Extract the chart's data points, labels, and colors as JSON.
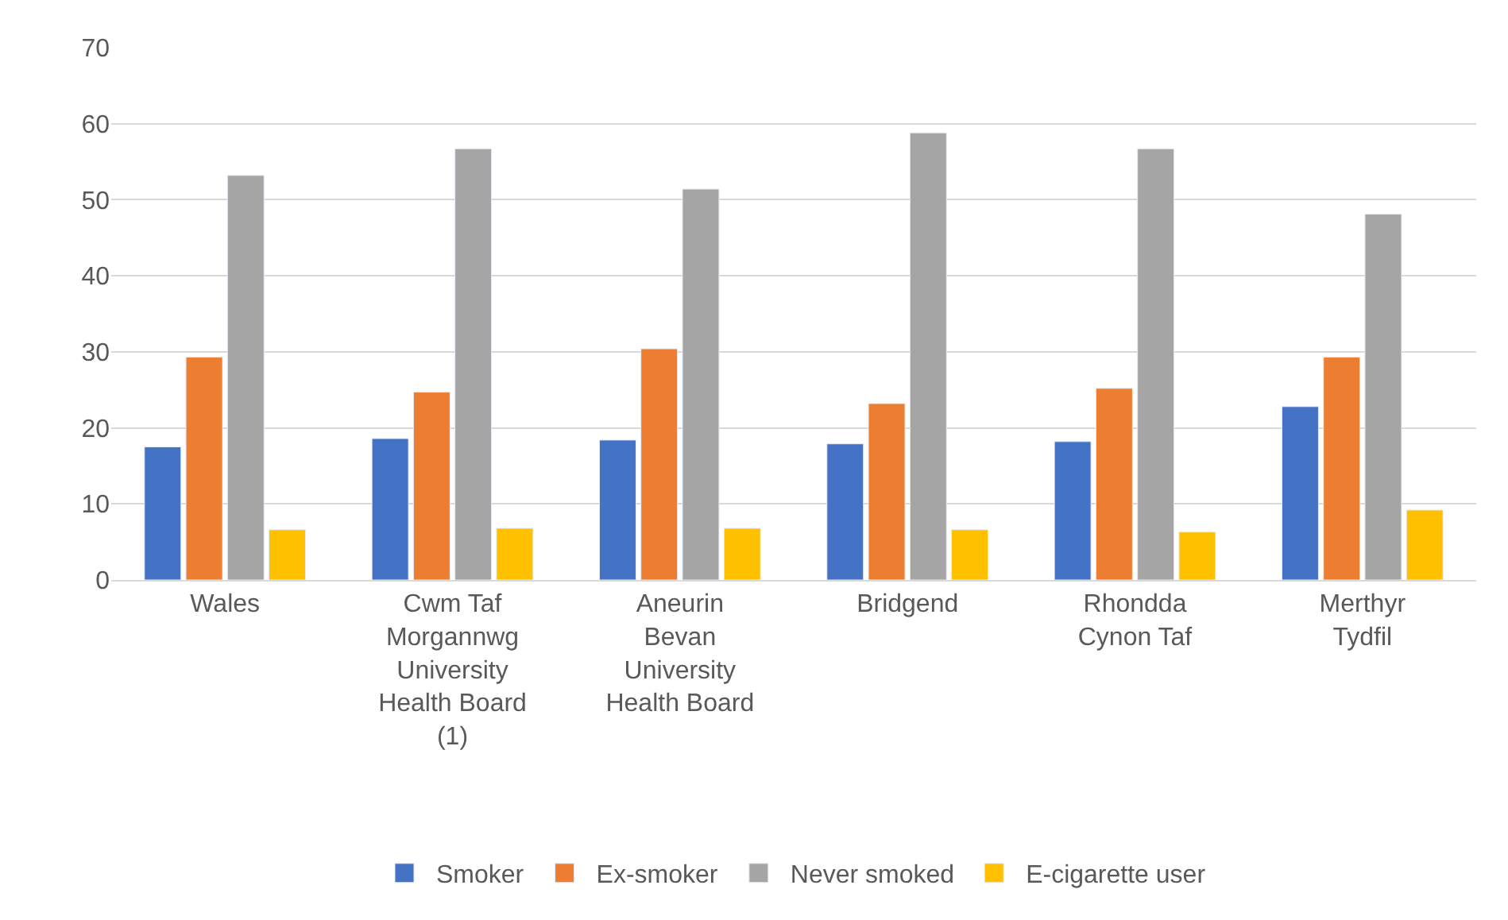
{
  "chart_data": {
    "type": "bar",
    "categories": [
      "Wales",
      "Cwm Taf Morgannwg University Health Board (1)",
      "Aneurin Bevan University Health Board",
      "Bridgend",
      "Rhondda Cynon Taf",
      "Merthyr Tydfil"
    ],
    "series": [
      {
        "name": "Smoker",
        "color": "#4472c4",
        "values": [
          17.5,
          18.6,
          18.4,
          17.9,
          18.2,
          22.8
        ]
      },
      {
        "name": "Ex-smoker",
        "color": "#ed7d31",
        "values": [
          29.3,
          24.7,
          30.4,
          23.2,
          25.2,
          29.3
        ]
      },
      {
        "name": "Never smoked",
        "color": "#a5a5a5",
        "values": [
          53.2,
          56.7,
          51.4,
          58.8,
          56.7,
          48.1
        ]
      },
      {
        "name": "E-cigarette user",
        "color": "#ffc000",
        "values": [
          6.6,
          6.8,
          6.8,
          6.6,
          6.3,
          9.2
        ]
      }
    ],
    "ylim": [
      0,
      70
    ],
    "yticks": [
      0,
      10,
      20,
      30,
      40,
      50,
      60,
      70
    ],
    "grid": "y",
    "legend": "bottom"
  }
}
